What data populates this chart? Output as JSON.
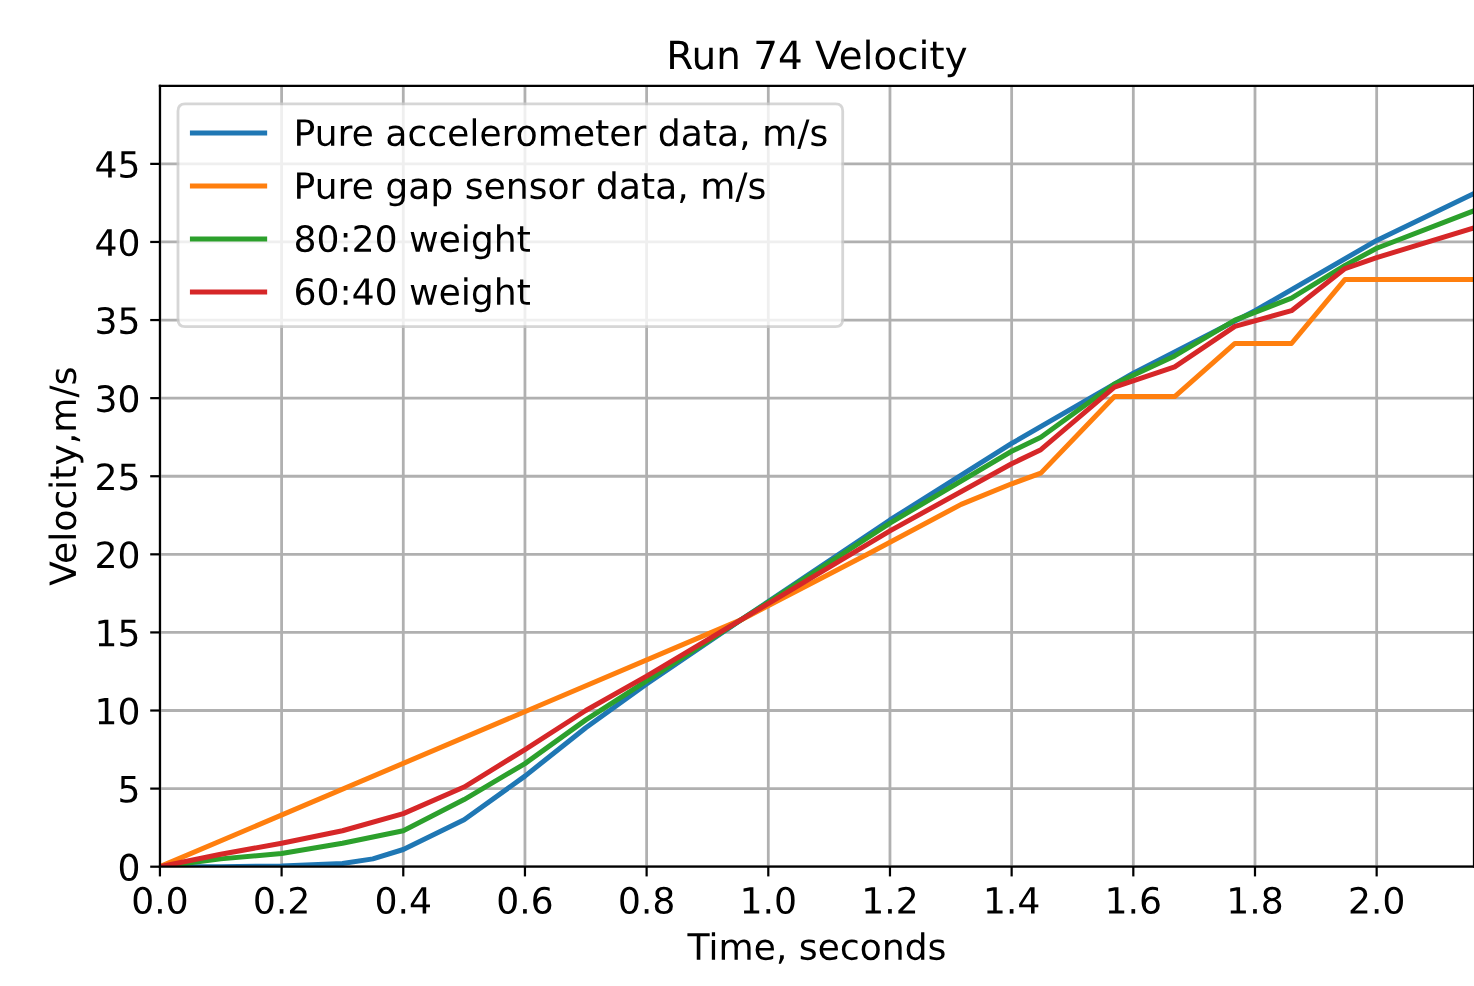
{
  "chart_data": {
    "type": "line",
    "title": "Run 74 Velocity",
    "xlabel": "Time, seconds",
    "ylabel": "Velocity,m/s",
    "xlim": [
      0,
      2.16
    ],
    "ylim": [
      0,
      50
    ],
    "xticks": [
      {
        "value": 0,
        "label": "0.0"
      },
      0.2,
      0.4,
      0.6,
      0.8,
      {
        "value": 1,
        "label": "1.0"
      },
      1.2,
      1.4,
      1.6,
      1.8,
      {
        "value": 2,
        "label": "2.0"
      }
    ],
    "yticks": [
      0,
      5,
      10,
      15,
      20,
      25,
      30,
      35,
      40,
      45
    ],
    "grid": true,
    "legend": "top left",
    "line_style": "solid",
    "series": [
      {
        "name": "Pure accelerometer data, m/s",
        "color": "#1f77b4",
        "x": [
          0,
          0.1,
          0.2,
          0.3,
          0.35,
          0.4,
          0.5,
          0.6,
          0.7,
          0.8,
          0.955,
          1.2,
          1.4,
          1.6,
          1.8,
          2.0,
          2.16
        ],
        "values": [
          0,
          0,
          0.05,
          0.2,
          0.5,
          1.1,
          3.0,
          5.8,
          8.9,
          11.7,
          15.8,
          22.2,
          27.1,
          31.6,
          35.6,
          40.1,
          43.1
        ]
      },
      {
        "name": "Pure gap sensor data, m/s",
        "color": "#ff7f0e",
        "x": [
          0,
          0.955,
          1.163,
          1.317,
          1.399,
          1.448,
          1.569,
          1.668,
          1.767,
          1.86,
          1.948,
          2.16
        ],
        "values": [
          0,
          15.8,
          20.0,
          23.2,
          24.5,
          25.2,
          30.1,
          30.1,
          33.5,
          33.5,
          37.6,
          37.6
        ]
      },
      {
        "name": "80:20 weight",
        "color": "#2ca02c",
        "x": [
          0,
          0.1,
          0.2,
          0.3,
          0.4,
          0.5,
          0.6,
          0.7,
          0.8,
          0.955,
          1.2,
          1.4,
          1.448,
          1.569,
          1.668,
          1.767,
          1.86,
          1.948,
          2.0,
          2.16
        ],
        "values": [
          0,
          0.5,
          0.85,
          1.5,
          2.3,
          4.3,
          6.6,
          9.4,
          11.9,
          15.8,
          22.0,
          26.6,
          27.5,
          30.9,
          32.7,
          35.0,
          36.4,
          38.5,
          39.6,
          42.0
        ]
      },
      {
        "name": "60:40 weight",
        "color": "#d62728",
        "x": [
          0,
          0.1,
          0.2,
          0.3,
          0.4,
          0.5,
          0.6,
          0.7,
          0.8,
          0.955,
          1.2,
          1.4,
          1.448,
          1.569,
          1.668,
          1.767,
          1.86,
          1.948,
          2.0,
          2.16
        ],
        "values": [
          0,
          0.8,
          1.5,
          2.3,
          3.4,
          5.1,
          7.5,
          10.0,
          12.2,
          15.8,
          21.5,
          25.8,
          26.7,
          30.7,
          32.0,
          34.6,
          35.6,
          38.3,
          39.0,
          40.9
        ]
      }
    ]
  }
}
